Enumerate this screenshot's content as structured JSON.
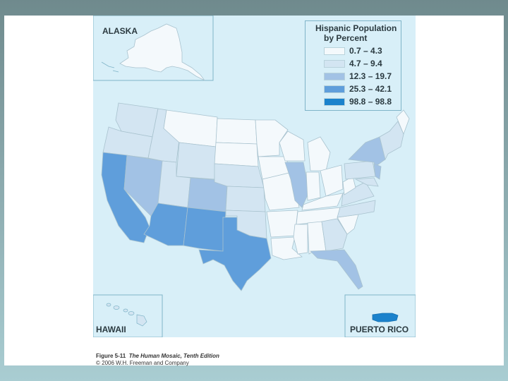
{
  "insets": {
    "alaska": "ALASKA",
    "hawaii": "HAWAII",
    "puerto_rico": "PUERTO RICO"
  },
  "legend": {
    "title_line1": "Hispanic Population",
    "title_line2": "by Percent",
    "classes": [
      {
        "label": "0.7 – 4.3",
        "color": "#f4f9fc"
      },
      {
        "label": "4.7 – 9.4",
        "color": "#d3e5f2"
      },
      {
        "label": "12.3 – 19.7",
        "color": "#a2c2e5"
      },
      {
        "label": "25.3 – 42.1",
        "color": "#5f9edb"
      },
      {
        "label": "98.8 – 98.8",
        "color": "#1b82cc"
      }
    ]
  },
  "caption": {
    "figure": "Figure 5-11",
    "book": "The Human Mosaic, Tenth Edition",
    "copyright": "© 2006 W.H. Freeman and Company"
  },
  "colors": {
    "water": "#d8eff8",
    "border": "#a9c3cf"
  }
}
